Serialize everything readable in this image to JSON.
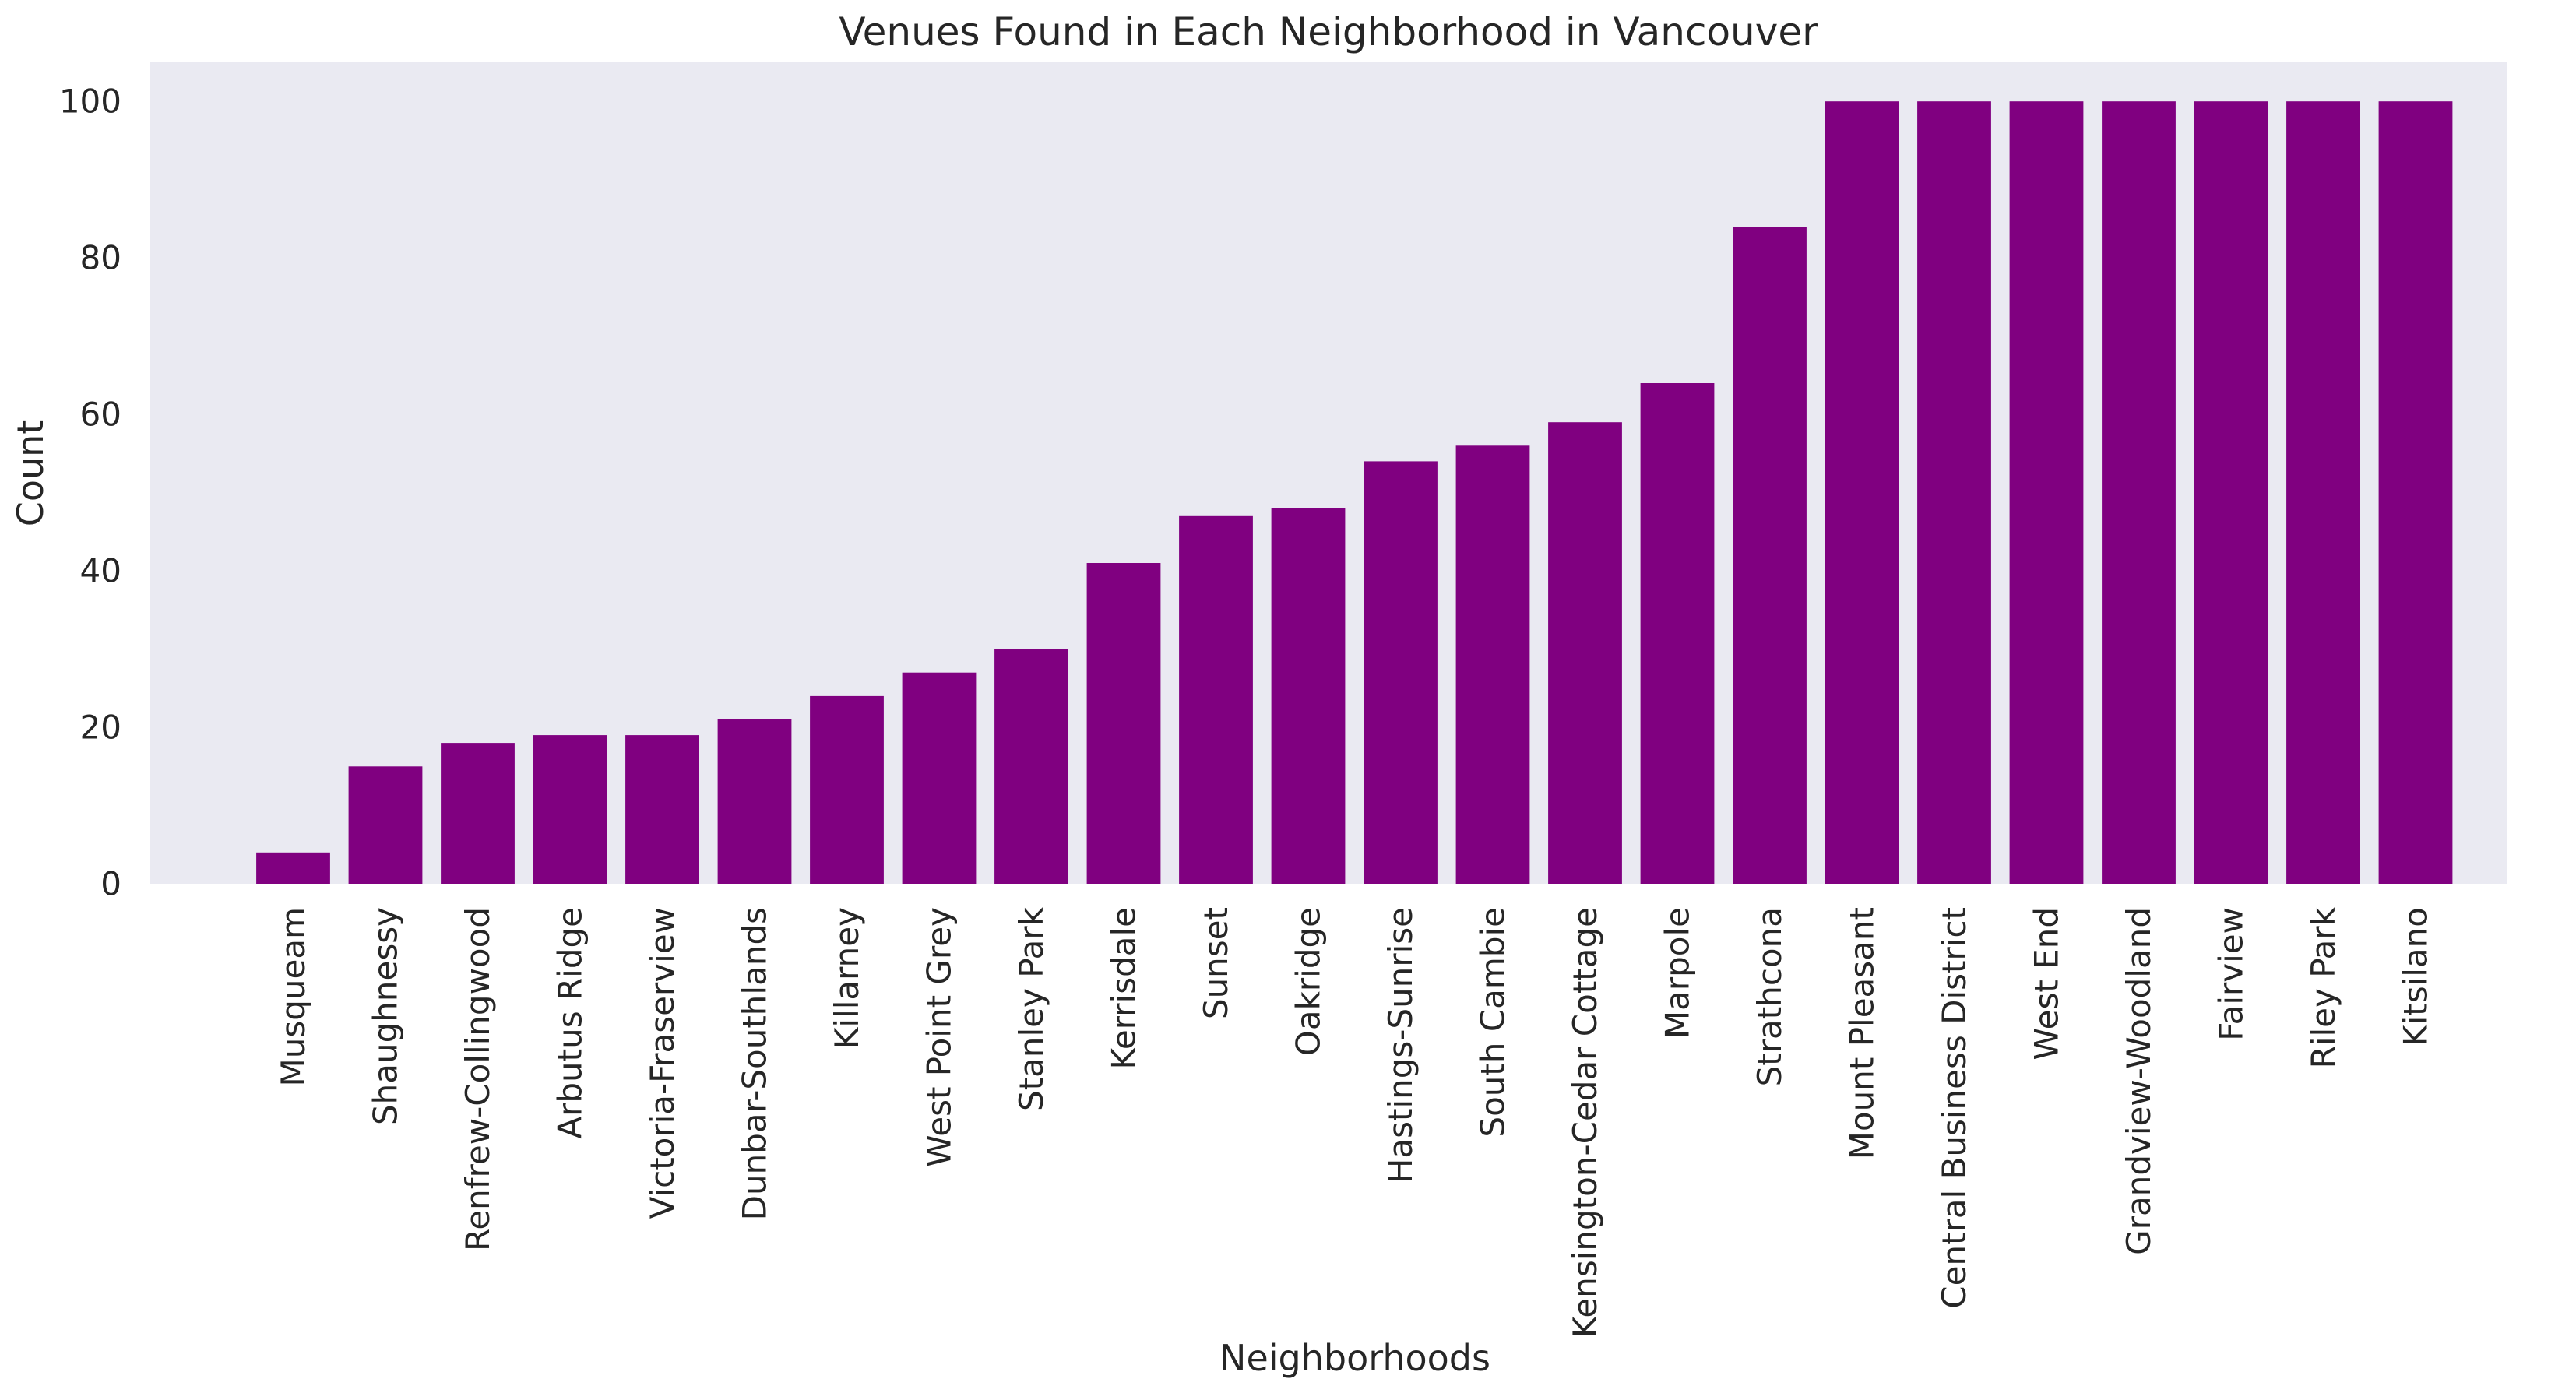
{
  "chart_data": {
    "type": "bar",
    "title": "Venues Found in Each Neighborhood in Vancouver",
    "xlabel": "Neighborhoods",
    "ylabel": "Count",
    "ylim": [
      0,
      105
    ],
    "yticks": [
      0,
      20,
      40,
      60,
      80,
      100
    ],
    "grid": false,
    "bar_color": "#800080",
    "plot_background": "#EAEAF2",
    "categories": [
      "Musqueam",
      "Shaughnessy",
      "Renfrew-Collingwood",
      "Arbutus Ridge",
      "Victoria-Fraserview",
      "Dunbar-Southlands",
      "Killarney",
      "West Point Grey",
      "Stanley Park",
      "Kerrisdale",
      "Sunset",
      "Oakridge",
      "Hastings-Sunrise",
      "South Cambie",
      "Kensington-Cedar Cottage",
      "Marpole",
      "Strathcona",
      "Mount Pleasant",
      "Central Business District",
      "West End",
      "Grandview-Woodland",
      "Fairview",
      "Riley Park",
      "Kitsilano"
    ],
    "values": [
      4,
      15,
      18,
      19,
      19,
      21,
      24,
      27,
      30,
      41,
      47,
      48,
      54,
      56,
      59,
      64,
      84,
      100,
      100,
      100,
      100,
      100,
      100,
      100
    ]
  }
}
